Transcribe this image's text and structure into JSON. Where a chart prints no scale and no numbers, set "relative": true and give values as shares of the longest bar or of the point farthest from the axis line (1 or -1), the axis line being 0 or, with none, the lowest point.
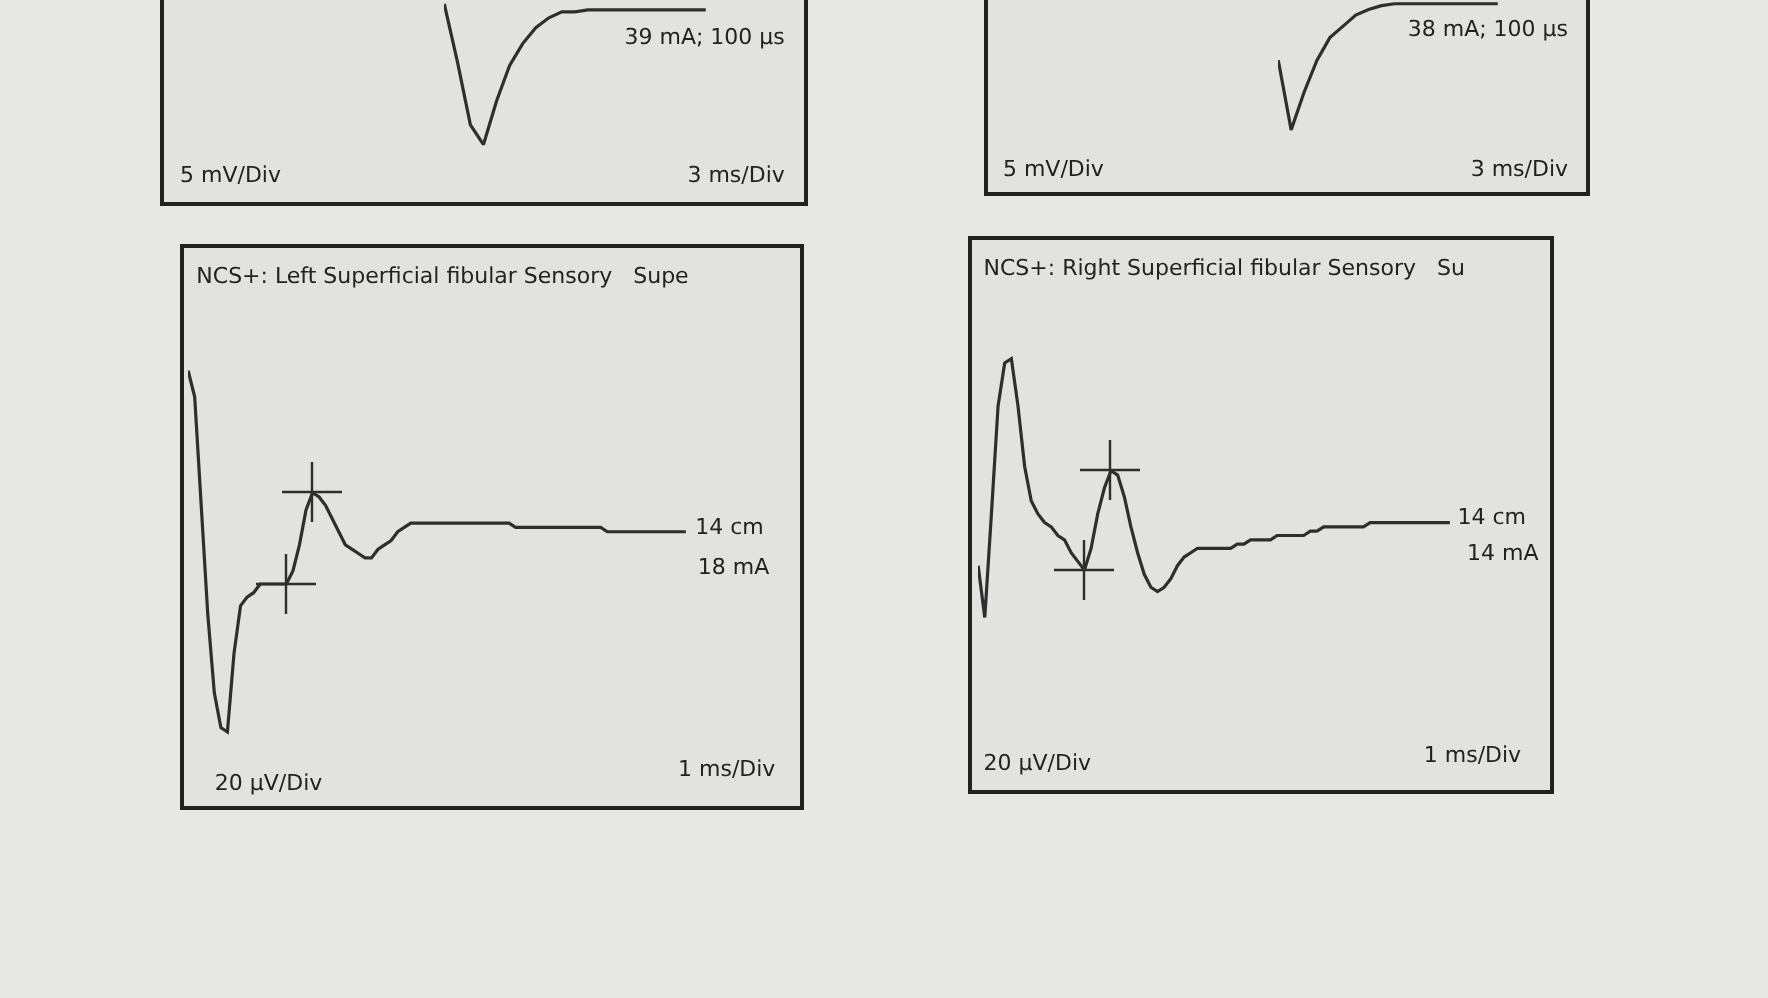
{
  "chart_data": [
    {
      "type": "line",
      "relative": true,
      "annotations": [
        "39 mA; 100 µs",
        "5 mV/Div",
        "3 ms/Div"
      ],
      "categories": [
        null,
        null,
        null,
        null,
        null,
        null,
        null,
        null,
        null,
        null,
        null,
        null,
        null,
        null,
        null,
        null,
        null,
        null,
        null,
        null,
        null
      ],
      "series": [
        {
          "color": "#2e2e2e",
          "values": [
            1.0,
            0.71,
            0.39,
            0.29,
            0.51,
            0.69,
            0.8,
            0.88,
            0.93,
            0.96,
            0.96,
            0.97,
            0.97,
            0.97,
            0.97,
            0.97,
            0.97,
            0.97,
            0.97,
            0.97,
            0.97
          ]
        }
      ]
    },
    {
      "type": "line",
      "relative": true,
      "annotations": [
        "38 mA; 100 µs",
        "5 mV/Div",
        "3 ms/Div"
      ],
      "categories": [
        null,
        null,
        null,
        null,
        null,
        null,
        null,
        null,
        null,
        null,
        null,
        null,
        null,
        null,
        null,
        null,
        null,
        null
      ],
      "series": [
        {
          "color": "#2e2e2e",
          "values": [
            0.7,
            0.33,
            0.53,
            0.7,
            0.82,
            0.88,
            0.94,
            0.97,
            0.99,
            1.0,
            1.0,
            1.0,
            1.0,
            1.0,
            1.0,
            1.0,
            1.0,
            1.0
          ]
        }
      ]
    },
    {
      "type": "line",
      "relative": true,
      "title": "NCS+: Left Superficial fibular Sensory   Supe",
      "annotations": [
        "14 cm",
        "18 mA",
        "20 µV/Div",
        "1 ms/Div"
      ],
      "categories": [
        null,
        null,
        null,
        null,
        null,
        null,
        null,
        null,
        null,
        null,
        null,
        null,
        null,
        null,
        null,
        null,
        null,
        null,
        null,
        null,
        null,
        null,
        null,
        null,
        null,
        null,
        null,
        null,
        null,
        null,
        null,
        null,
        null,
        null,
        null,
        null,
        null,
        null,
        null,
        null,
        null,
        null,
        null,
        null,
        null,
        null,
        null,
        null,
        null,
        null,
        null,
        null,
        null,
        null,
        null,
        null,
        null,
        null,
        null,
        null,
        null,
        null,
        null,
        null,
        null,
        null,
        null,
        null,
        null,
        null,
        null,
        null,
        null,
        null,
        null,
        null,
        null
      ],
      "series": [
        {
          "color": "#2e2e2e",
          "values": [
            1.0,
            0.94,
            0.69,
            0.44,
            0.26,
            0.18,
            0.17,
            0.35,
            0.46,
            0.48,
            0.49,
            0.51,
            0.51,
            0.51,
            0.51,
            0.51,
            0.54,
            0.6,
            0.68,
            0.72,
            0.71,
            0.69,
            0.66,
            0.63,
            0.6,
            0.59,
            0.58,
            0.57,
            0.57,
            0.59,
            0.6,
            0.61,
            0.63,
            0.64,
            0.65,
            0.65,
            0.65,
            0.65,
            0.65,
            0.65,
            0.65,
            0.65,
            0.65,
            0.65,
            0.65,
            0.65,
            0.65,
            0.65,
            0.65,
            0.65,
            0.64,
            0.64,
            0.64,
            0.64,
            0.64,
            0.64,
            0.64,
            0.64,
            0.64,
            0.64,
            0.64,
            0.64,
            0.64,
            0.64,
            0.63,
            0.63,
            0.63,
            0.63,
            0.63,
            0.63,
            0.63,
            0.63,
            0.63,
            0.63,
            0.63,
            0.63,
            0.63
          ]
        }
      ]
    },
    {
      "type": "line",
      "relative": true,
      "title": "NCS+: Right Superficial fibular Sensory   Su",
      "annotations": [
        "14 cm",
        "14 mA",
        "20 µV/Div",
        "1 ms/Div"
      ],
      "categories": [
        null,
        null,
        null,
        null,
        null,
        null,
        null,
        null,
        null,
        null,
        null,
        null,
        null,
        null,
        null,
        null,
        null,
        null,
        null,
        null,
        null,
        null,
        null,
        null,
        null,
        null,
        null,
        null,
        null,
        null,
        null,
        null,
        null,
        null,
        null,
        null,
        null,
        null,
        null,
        null,
        null,
        null,
        null,
        null,
        null,
        null,
        null,
        null,
        null,
        null,
        null,
        null,
        null,
        null,
        null,
        null,
        null,
        null,
        null,
        null,
        null,
        null,
        null,
        null,
        null,
        null,
        null,
        null,
        null,
        null,
        null,
        null
      ],
      "series": [
        {
          "color": "#2e2e2e",
          "values": [
            0.52,
            0.4,
            0.64,
            0.89,
            0.99,
            1.0,
            0.89,
            0.75,
            0.67,
            0.64,
            0.62,
            0.61,
            0.59,
            0.58,
            0.55,
            0.53,
            0.51,
            0.56,
            0.64,
            0.7,
            0.74,
            0.73,
            0.68,
            0.61,
            0.55,
            0.5,
            0.47,
            0.46,
            0.47,
            0.49,
            0.52,
            0.54,
            0.55,
            0.56,
            0.56,
            0.56,
            0.56,
            0.56,
            0.56,
            0.57,
            0.57,
            0.58,
            0.58,
            0.58,
            0.58,
            0.59,
            0.59,
            0.59,
            0.59,
            0.59,
            0.6,
            0.6,
            0.61,
            0.61,
            0.61,
            0.61,
            0.61,
            0.61,
            0.61,
            0.62,
            0.62,
            0.62,
            0.62,
            0.62,
            0.62,
            0.62,
            0.62,
            0.62,
            0.62,
            0.62,
            0.62,
            0.62
          ]
        }
      ]
    }
  ]
}
